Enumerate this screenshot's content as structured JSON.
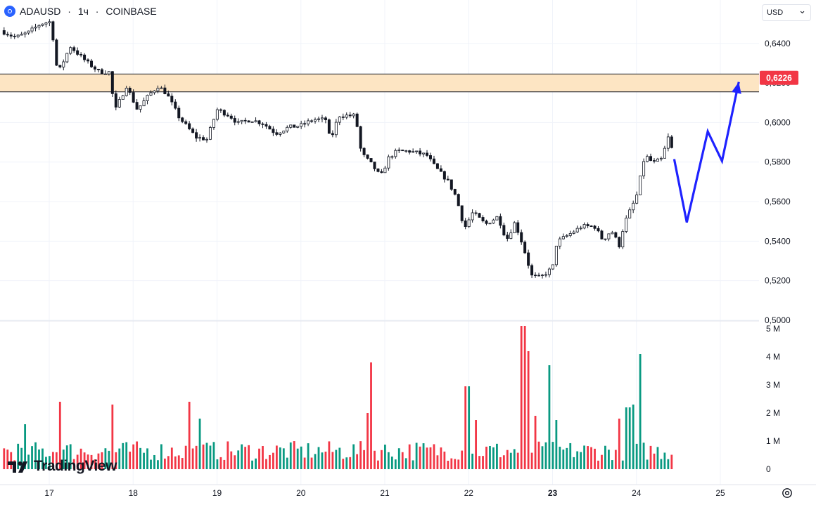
{
  "header": {
    "symbol": "ADAUSD",
    "separator1": " · ",
    "interval": "1ч",
    "separator2": " · ",
    "exchange": "COINBASE"
  },
  "currency_select": {
    "value": "USD",
    "chevron": "⌄"
  },
  "price_label": {
    "value": "0,6226",
    "color": "#f23645"
  },
  "brand": {
    "name": "TradingView"
  },
  "icons": {
    "symbol": "coin-icon",
    "settings": "gear-icon",
    "logo": "tradingview-logo-icon"
  },
  "colors": {
    "up": "#089981",
    "down": "#f23645",
    "zone_fill": "#fde5c3",
    "arrow": "#1e22ff"
  },
  "chart_data": [
    {
      "type": "candlestick",
      "title": "ADAUSD · 1ч · COINBASE",
      "ylim": [
        0.5,
        0.652
      ],
      "y_ticks": [
        "0,5000",
        "0,5200",
        "0,5400",
        "0,5600",
        "0,5800",
        "0,6000",
        "0,6200",
        "0,6400"
      ],
      "y_tick_values": [
        0.5,
        0.52,
        0.54,
        0.56,
        0.58,
        0.6,
        0.62,
        0.64
      ],
      "x_ticks": [
        "17",
        "18",
        "19",
        "20",
        "21",
        "22",
        "23",
        "24",
        "25"
      ],
      "x_tick_positions": [
        17,
        18,
        19,
        20,
        21,
        22,
        23,
        24,
        25
      ],
      "xlim": [
        16.42,
        25.45
      ],
      "data_end": 24.43,
      "grid": true,
      "anchors": [
        [
          16.42,
          0.6465
        ],
        [
          16.6,
          0.643
        ],
        [
          16.75,
          0.6455
        ],
        [
          16.9,
          0.65
        ],
        [
          17.02,
          0.651
        ],
        [
          17.1,
          0.6245
        ],
        [
          17.25,
          0.6385
        ],
        [
          17.45,
          0.6305
        ],
        [
          17.6,
          0.6255
        ],
        [
          17.72,
          0.6255
        ],
        [
          17.78,
          0.6055
        ],
        [
          17.92,
          0.6185
        ],
        [
          18.05,
          0.6065
        ],
        [
          18.2,
          0.6145
        ],
        [
          18.3,
          0.6185
        ],
        [
          18.4,
          0.6145
        ],
        [
          18.55,
          0.6025
        ],
        [
          18.75,
          0.5925
        ],
        [
          18.88,
          0.5915
        ],
        [
          19.0,
          0.6065
        ],
        [
          19.15,
          0.6035
        ],
        [
          19.25,
          0.5995
        ],
        [
          19.4,
          0.6015
        ],
        [
          19.55,
          0.5995
        ],
        [
          19.7,
          0.5945
        ],
        [
          19.85,
          0.5975
        ],
        [
          20.0,
          0.5985
        ],
        [
          20.15,
          0.6015
        ],
        [
          20.3,
          0.6015
        ],
        [
          20.35,
          0.5905
        ],
        [
          20.45,
          0.6035
        ],
        [
          20.65,
          0.6035
        ],
        [
          20.72,
          0.5845
        ],
        [
          20.85,
          0.5785
        ],
        [
          20.95,
          0.5725
        ],
        [
          21.05,
          0.5825
        ],
        [
          21.15,
          0.5855
        ],
        [
          21.3,
          0.5855
        ],
        [
          21.5,
          0.5835
        ],
        [
          21.6,
          0.5775
        ],
        [
          21.75,
          0.5705
        ],
        [
          21.85,
          0.5625
        ],
        [
          21.95,
          0.5465
        ],
        [
          22.05,
          0.5545
        ],
        [
          22.2,
          0.5485
        ],
        [
          22.35,
          0.5525
        ],
        [
          22.45,
          0.5405
        ],
        [
          22.55,
          0.5495
        ],
        [
          22.65,
          0.5375
        ],
        [
          22.75,
          0.5225
        ],
        [
          22.85,
          0.5215
        ],
        [
          23.0,
          0.5265
        ],
        [
          23.05,
          0.5395
        ],
        [
          23.2,
          0.5435
        ],
        [
          23.35,
          0.5475
        ],
        [
          23.5,
          0.5475
        ],
        [
          23.6,
          0.5405
        ],
        [
          23.7,
          0.5455
        ],
        [
          23.8,
          0.5375
        ],
        [
          23.85,
          0.5485
        ],
        [
          24.0,
          0.5625
        ],
        [
          24.1,
          0.5835
        ],
        [
          24.2,
          0.5795
        ],
        [
          24.3,
          0.5815
        ],
        [
          24.38,
          0.5925
        ],
        [
          24.43,
          0.5855
        ]
      ],
      "volume": {
        "ylim": [
          0,
          5200000
        ],
        "y_ticks": [
          "0",
          "1 M",
          "2 M",
          "3 M",
          "4 M",
          "5 M"
        ],
        "y_tick_values": [
          0,
          1000000,
          2000000,
          3000000,
          4000000,
          5000000
        ],
        "spikes": [
          [
            16.72,
            1600000
          ],
          [
            17.12,
            2400000
          ],
          [
            17.74,
            2300000
          ],
          [
            18.66,
            2400000
          ],
          [
            18.8,
            1800000
          ],
          [
            20.8,
            2000000
          ],
          [
            20.84,
            3800000
          ],
          [
            21.98,
            2950000
          ],
          [
            22.08,
            1750000
          ],
          [
            22.65,
            5100000
          ],
          [
            22.7,
            4200000
          ],
          [
            22.78,
            1900000
          ],
          [
            22.95,
            3700000
          ],
          [
            23.04,
            1750000
          ],
          [
            23.8,
            1800000
          ],
          [
            23.9,
            2200000
          ],
          [
            23.97,
            2300000
          ],
          [
            24.05,
            4100000
          ]
        ]
      }
    }
  ],
  "projection": {
    "price_path": [
      [
        24.45,
        0.5815
      ],
      [
        24.6,
        0.5495
      ],
      [
        24.85,
        0.5955
      ],
      [
        25.02,
        0.5805
      ],
      [
        25.22,
        0.6205
      ]
    ],
    "zone": {
      "upper": 0.6245,
      "lower": 0.6155
    }
  }
}
